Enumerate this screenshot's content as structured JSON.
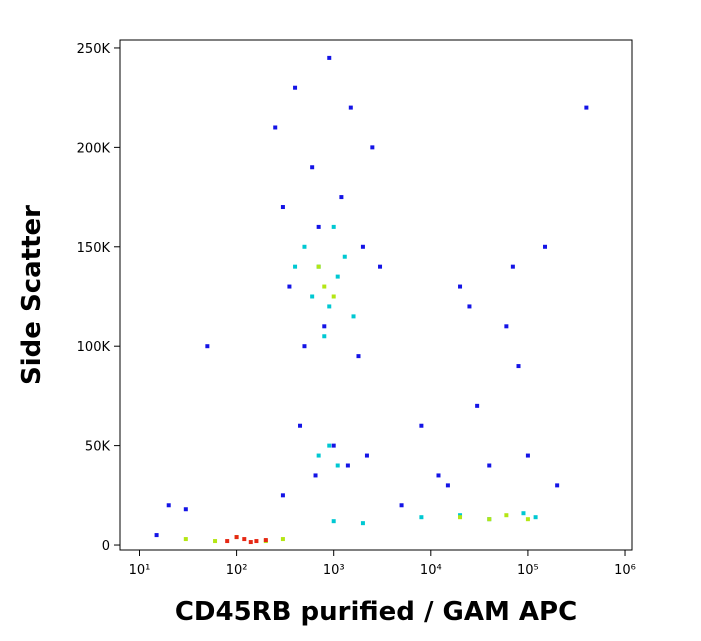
{
  "chart_data": {
    "type": "scatter",
    "x_label": "CD45RB purified / GAM APC",
    "y_label": "Side Scatter",
    "xscale": "log",
    "xlim": [
      6.3,
      1180000
    ],
    "ylim": [
      -2500,
      254000
    ],
    "xticks": [
      {
        "value": 10,
        "label": "10¹"
      },
      {
        "value": 100,
        "label": "10²"
      },
      {
        "value": 1000,
        "label": "10³"
      },
      {
        "value": 10000,
        "label": "10⁴"
      },
      {
        "value": 100000,
        "label": "10⁵"
      },
      {
        "value": 1000000,
        "label": "10⁶"
      }
    ],
    "yticks": [
      0,
      {
        "value": 50000,
        "label": "50K"
      },
      {
        "value": 100000,
        "label": "100K"
      },
      {
        "value": 150000,
        "label": "150K"
      },
      {
        "value": 200000,
        "label": "200K"
      },
      {
        "value": 250000,
        "label": "250K"
      }
    ],
    "grid": false,
    "series": [
      {
        "color": "#1414e6",
        "x": [
          250,
          400,
          600,
          900,
          1500,
          2500,
          300,
          700,
          1200,
          2000,
          350,
          800,
          3000,
          500,
          1800,
          450,
          1000,
          2200,
          650,
          1400,
          20,
          50,
          15,
          300,
          30,
          8000,
          20000,
          60000,
          150000,
          400000,
          15000,
          40000,
          100000,
          5000,
          25000,
          80000,
          200000,
          12000,
          30000,
          70000
        ],
        "values": [
          210000,
          230000,
          190000,
          245000,
          220000,
          200000,
          170000,
          160000,
          175000,
          150000,
          130000,
          110000,
          140000,
          100000,
          95000,
          60000,
          50000,
          45000,
          35000,
          40000,
          20000,
          100000,
          5000,
          25000,
          18000,
          60000,
          130000,
          110000,
          150000,
          220000,
          30000,
          40000,
          45000,
          20000,
          120000,
          90000,
          30000,
          35000,
          70000,
          140000
        ]
      },
      {
        "color": "#00c8d2",
        "x": [
          500,
          700,
          900,
          1100,
          600,
          1300,
          800,
          1000,
          400,
          1600,
          700,
          900,
          1100,
          1000,
          2000,
          8000,
          20000,
          40000,
          90000,
          120000
        ],
        "values": [
          150000,
          140000,
          120000,
          135000,
          125000,
          145000,
          105000,
          160000,
          140000,
          115000,
          45000,
          50000,
          40000,
          12000,
          11000,
          14000,
          15000,
          13000,
          16000,
          14000
        ]
      },
      {
        "color": "#b4e614",
        "x": [
          800,
          1000,
          700,
          20000,
          40000,
          60000,
          100000,
          30,
          60,
          100,
          200,
          300
        ],
        "values": [
          130000,
          125000,
          140000,
          14000,
          13000,
          15000,
          13000,
          3000,
          2000,
          4000,
          2000,
          3000
        ]
      },
      {
        "color": "#e62814",
        "x": [
          80,
          120,
          160,
          200,
          100,
          140
        ],
        "values": [
          2000,
          3000,
          2000,
          2500,
          4000,
          1500
        ]
      }
    ]
  }
}
